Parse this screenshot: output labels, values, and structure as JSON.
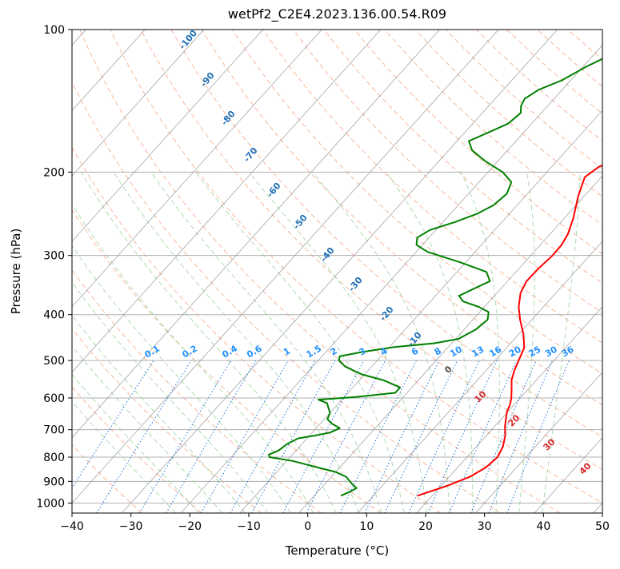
{
  "chart_data": {
    "type": "line",
    "title": "wetPf2_C2E4.2023.136.00.54.R09",
    "xlabel": "Temperature (°C)",
    "ylabel": "Pressure (hPa)",
    "xlim": [
      -40,
      50
    ],
    "ylim": [
      1050,
      100
    ],
    "y_scale": "log",
    "skew": true,
    "grid": true,
    "x_ticks": [
      -40,
      -30,
      -20,
      -10,
      0,
      10,
      20,
      30,
      40,
      50
    ],
    "x_tick_labels": [
      "−40",
      "−30",
      "−20",
      "−10",
      "0",
      "10",
      "20",
      "30",
      "40",
      "50"
    ],
    "y_ticks": [
      100,
      200,
      300,
      400,
      500,
      600,
      700,
      800,
      900,
      1000
    ],
    "y_tick_labels": [
      "100",
      "200",
      "300",
      "400",
      "500",
      "600",
      "700",
      "800",
      "900",
      "1000"
    ],
    "series": [
      {
        "color": "#ff0000",
        "points": [
          [
            17.5,
            965
          ],
          [
            21,
            920
          ],
          [
            23.5,
            880
          ],
          [
            24.8,
            840
          ],
          [
            25.2,
            800
          ],
          [
            24.5,
            760
          ],
          [
            23.2,
            720
          ],
          [
            21.8,
            690
          ],
          [
            20.6,
            660
          ],
          [
            19.8,
            640
          ],
          [
            19.3,
            620
          ],
          [
            18.5,
            600
          ],
          [
            17.2,
            575
          ],
          [
            15.8,
            550
          ],
          [
            14.8,
            525
          ],
          [
            14.0,
            500
          ],
          [
            13.0,
            470
          ],
          [
            10.8,
            440
          ],
          [
            8.0,
            410
          ],
          [
            5.8,
            385
          ],
          [
            4.0,
            360
          ],
          [
            3.2,
            340
          ],
          [
            3.3,
            320
          ],
          [
            3.7,
            300
          ],
          [
            3.6,
            285
          ],
          [
            3.0,
            270
          ],
          [
            1.5,
            250
          ],
          [
            -1.0,
            225
          ],
          [
            -2.8,
            205
          ],
          [
            -2.0,
            195
          ],
          [
            0.5,
            185
          ],
          [
            2.8,
            175
          ],
          [
            4.0,
            165
          ],
          [
            5.0,
            150
          ],
          [
            6.0,
            140
          ],
          [
            6.5,
            130
          ],
          [
            6.8,
            120
          ],
          [
            7.2,
            110
          ],
          [
            8.2,
            100
          ]
        ]
      },
      {
        "color": "#008000",
        "points": [
          [
            4.5,
            965
          ],
          [
            5.5,
            945
          ],
          [
            6.0,
            930
          ],
          [
            4.5,
            910
          ],
          [
            2.5,
            880
          ],
          [
            0.0,
            860
          ],
          [
            -5.0,
            835
          ],
          [
            -9.0,
            815
          ],
          [
            -13.5,
            800
          ],
          [
            -14.0,
            790
          ],
          [
            -13.0,
            775
          ],
          [
            -12.5,
            750
          ],
          [
            -11.5,
            730
          ],
          [
            -9.0,
            720
          ],
          [
            -7.0,
            710
          ],
          [
            -6.0,
            695
          ],
          [
            -8.0,
            680
          ],
          [
            -9.5,
            665
          ],
          [
            -10.0,
            645
          ],
          [
            -11.0,
            630
          ],
          [
            -12.0,
            615
          ],
          [
            -14.0,
            605
          ],
          [
            -8.0,
            597
          ],
          [
            -2.0,
            585
          ],
          [
            -2.0,
            570
          ],
          [
            -6.0,
            550
          ],
          [
            -10.5,
            535
          ],
          [
            -14.5,
            515
          ],
          [
            -16.5,
            500
          ],
          [
            -17.0,
            490
          ],
          [
            -14.0,
            480
          ],
          [
            -9.0,
            468
          ],
          [
            -3.0,
            460
          ],
          [
            0.5,
            450
          ],
          [
            2.0,
            430
          ],
          [
            2.5,
            410
          ],
          [
            1.5,
            395
          ],
          [
            -1.0,
            385
          ],
          [
            -4.5,
            375
          ],
          [
            -6.0,
            365
          ],
          [
            -4.5,
            352
          ],
          [
            -3.0,
            340
          ],
          [
            -5.0,
            325
          ],
          [
            -11.0,
            310
          ],
          [
            -18.0,
            295
          ],
          [
            -21.0,
            285
          ],
          [
            -22.0,
            275
          ],
          [
            -21.0,
            265
          ],
          [
            -18.0,
            255
          ],
          [
            -15.5,
            245
          ],
          [
            -14.0,
            235
          ],
          [
            -13.5,
            222
          ],
          [
            -14.5,
            210
          ],
          [
            -17.5,
            200
          ],
          [
            -22.0,
            190
          ],
          [
            -26.0,
            180
          ],
          [
            -28.0,
            172
          ],
          [
            -26.0,
            165
          ],
          [
            -24.0,
            158
          ],
          [
            -23.5,
            150
          ],
          [
            -24.5,
            145
          ],
          [
            -25.0,
            140
          ],
          [
            -24.0,
            134
          ],
          [
            -21.5,
            128
          ],
          [
            -19.5,
            120
          ],
          [
            -16.0,
            110
          ],
          [
            -14.0,
            100
          ]
        ]
      }
    ],
    "dry_adiabat_labels": [
      "-100",
      "-90",
      "-80",
      "-70",
      "-60",
      "-50",
      "-40",
      "-30",
      "-20",
      "-10"
    ],
    "moist_adiabat_labels": [
      "0",
      "10",
      "20",
      "30",
      "40"
    ],
    "mixing_ratio_labels": [
      "0.1",
      "0.2",
      "0.4",
      "0.6",
      "1",
      "1.5",
      "2",
      "3",
      "4",
      "6",
      "8",
      "10",
      "13",
      "16",
      "20",
      "25",
      "30",
      "36"
    ],
    "mixing_ratio_values": [
      0.1,
      0.2,
      0.4,
      0.6,
      1,
      1.5,
      2,
      3,
      4,
      6,
      8,
      10,
      13,
      16,
      20,
      25,
      30,
      36
    ],
    "colors": {
      "isotherm": "#808080",
      "isobar": "#b0b0b0",
      "dry_adiabat": "#f4a582",
      "moist_adiabat": "#a6d7a6",
      "mixing_ratio": "#1f77d8",
      "dry_label": "#1f6fb4",
      "moist_label": "#d62728",
      "mr_label": "#1e90ff"
    }
  }
}
